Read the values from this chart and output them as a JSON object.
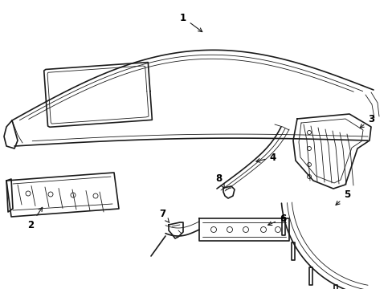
{
  "background_color": "#ffffff",
  "line_color": "#1a1a1a",
  "figsize": [
    4.89,
    3.6
  ],
  "dpi": 100,
  "lw_main": 1.2,
  "lw_thin": 0.6,
  "label_fontsize": 8.5
}
